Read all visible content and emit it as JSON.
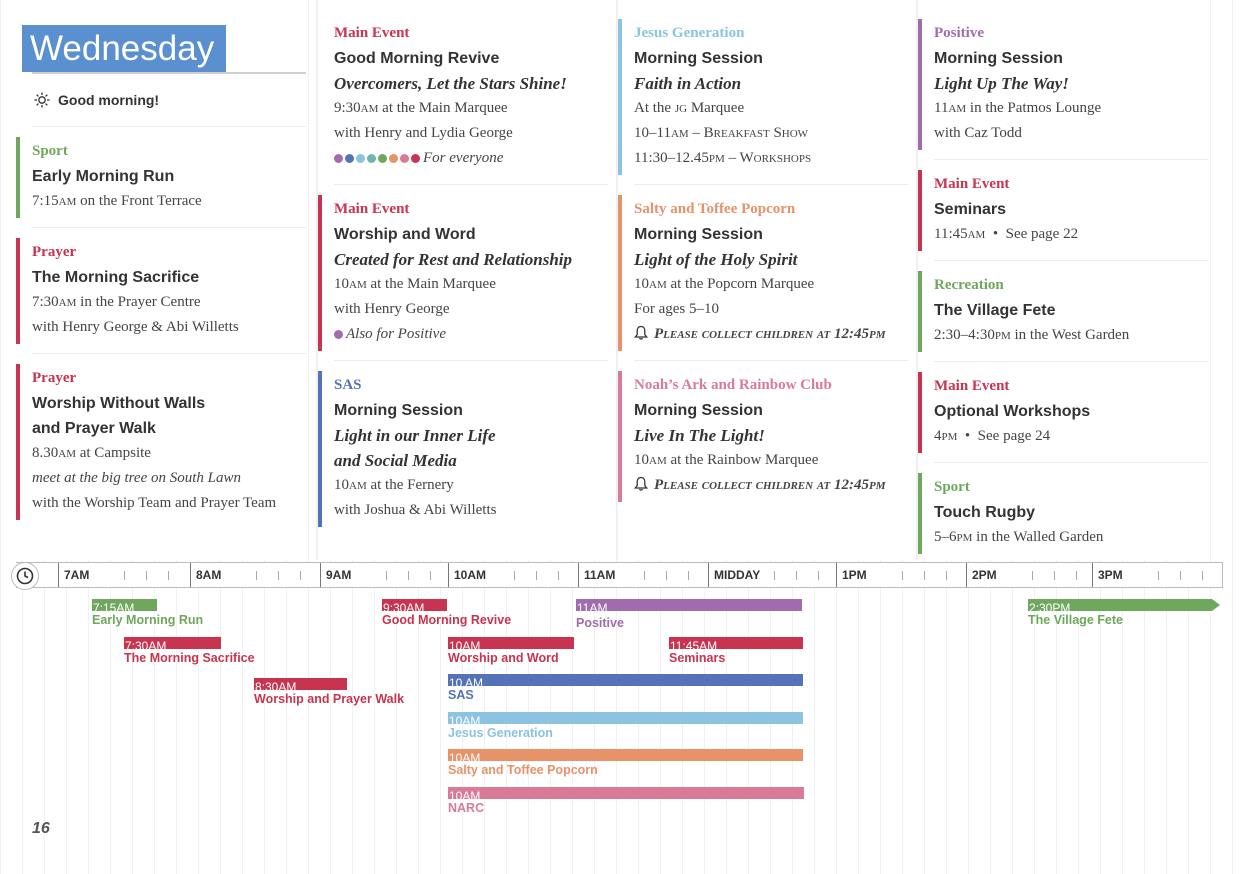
{
  "day": "Wednesday",
  "greeting": "Good morning!",
  "colors": {
    "green": "#6fa75c",
    "red": "#c8344f",
    "purple": "#a06cae",
    "blue": "#5572b8",
    "lightblue": "#8bc3e0",
    "orange": "#e8926a",
    "pink": "#d97a97",
    "grey": "#999999"
  },
  "page_number": "16",
  "events": [
    {
      "category": "Sport",
      "color": "#6fa75c",
      "title": "Early Morning Run",
      "time": "7:15am",
      "location": "on the Front Terrace"
    },
    {
      "category": "Prayer",
      "color": "#c8344f",
      "title": "The Morning Sacrifice",
      "time": "7:30am",
      "location": "in the Prayer Centre",
      "with": "with Henry George & Abi Willetts"
    },
    {
      "category": "Prayer",
      "color": "#c8344f",
      "title_line1": "Worship Without Walls",
      "title_line2": "and Prayer Walk",
      "time": "8.30am",
      "location": "at Campsite",
      "note": "meet at the big tree on South Lawn",
      "with": "with the Worship Team and Prayer Team"
    },
    {
      "category": "Main Event",
      "color": "#c8344f",
      "title": "Good Morning Revive",
      "subtitle": "Overcomers, Let the Stars Shine!",
      "time": "9:30am",
      "location": "at the Main Marquee",
      "with": "with Henry and Lydia George",
      "audience": "For everyone"
    },
    {
      "category": "Main Event",
      "color": "#c8344f",
      "title": "Worship and Word",
      "subtitle": "Created for Rest and Relationship",
      "time": "10am",
      "location": "at the Main Marquee",
      "with": "with Henry George",
      "audience": "Also for Positive"
    },
    {
      "category": "SAS",
      "color": "#5572b8",
      "title": "Morning Session",
      "subtitle_line1": "Light in our Inner Life",
      "subtitle_line2": "and Social Media",
      "time": "10am",
      "location": "at the Fernery",
      "with": "with Joshua & Abi Willetts"
    },
    {
      "category": "Jesus Generation",
      "color": "#8bc3e0",
      "title": "Morning Session",
      "subtitle": "Faith in Action",
      "location_prefix": "At the",
      "location_sc": "jg",
      "location": "Marquee",
      "line2": "10–11am – Breakfast Show",
      "line3": "11:30–12.45pm – Workshops"
    },
    {
      "category": "Salty and Toffee Popcorn",
      "color": "#e8926a",
      "title": "Morning Session",
      "subtitle": "Light of the Holy Spirit",
      "time": "10am",
      "location": "at the Popcorn Marquee",
      "ages": "For ages 5–10",
      "notice": "Please collect children at 12:45pm"
    },
    {
      "category": "Noah’s Ark and Rainbow Club",
      "color": "#d97a97",
      "title": "Morning Session",
      "subtitle": "Live In The Light!",
      "time": "10am",
      "location": "at the Rainbow Marquee",
      "notice": "Please collect children at 12:45pm"
    },
    {
      "category": "Positive",
      "color": "#a06cae",
      "title": "Morning Session",
      "subtitle": "Light Up The Way!",
      "time": "11am",
      "location": "in the Patmos Lounge",
      "with": "with Caz Todd"
    },
    {
      "category": "Main Event",
      "color": "#c8344f",
      "title": "Seminars",
      "time": "11:45am",
      "ref": "See page 22"
    },
    {
      "category": "Recreation",
      "color": "#6fa75c",
      "title": "The Village Fete",
      "time": "2:30–4:30pm",
      "location": "in the West Garden"
    },
    {
      "category": "Main Event",
      "color": "#c8344f",
      "title": "Optional Workshops",
      "time": "4pm",
      "ref": "See page 24"
    },
    {
      "category": "Sport",
      "color": "#6fa75c",
      "title": "Touch Rugby",
      "time": "5–6pm",
      "location": "in the Walled Garden"
    }
  ],
  "dot_colors": [
    "#a06cae",
    "#5572b8",
    "#8bc3e0",
    "#6fb5b0",
    "#6fa75c",
    "#e8926a",
    "#d97a97",
    "#c8344f"
  ],
  "timeline": {
    "hours": [
      "7AM",
      "8AM",
      "9AM",
      "10AM",
      "11AM",
      "MIDDAY",
      "1PM",
      "2PM",
      "3PM"
    ],
    "bars": [
      {
        "start": "7:15AM",
        "label": "Early Morning Run",
        "color": "#6fa75c"
      },
      {
        "start": "7:30AM",
        "label": "The Morning Sacrifice",
        "color": "#c8344f"
      },
      {
        "start": "8:30AM",
        "label": "Worship and Prayer Walk",
        "color": "#c8344f"
      },
      {
        "start": "9:30AM",
        "label": "Good Morning Revive",
        "color": "#c8344f"
      },
      {
        "start": "10AM",
        "label": "Worship and Word",
        "color": "#c8344f"
      },
      {
        "start": "10 AM",
        "label": "SAS",
        "color": "#5572b8"
      },
      {
        "start": "10AM",
        "label": "Jesus Generation",
        "color": "#8bc3e0"
      },
      {
        "start": "10AM",
        "label": "Salty and Toffee Popcorn",
        "color": "#e8926a"
      },
      {
        "start": "10AM",
        "label": "NARC",
        "color": "#d97a97"
      },
      {
        "start": "11AM",
        "label": "Positive",
        "color": "#a06cae"
      },
      {
        "start": "11:45AM",
        "label": "Seminars",
        "color": "#c8344f"
      },
      {
        "start": "2:30PM",
        "label": "The Village Fete",
        "color": "#6fa75c"
      }
    ]
  }
}
